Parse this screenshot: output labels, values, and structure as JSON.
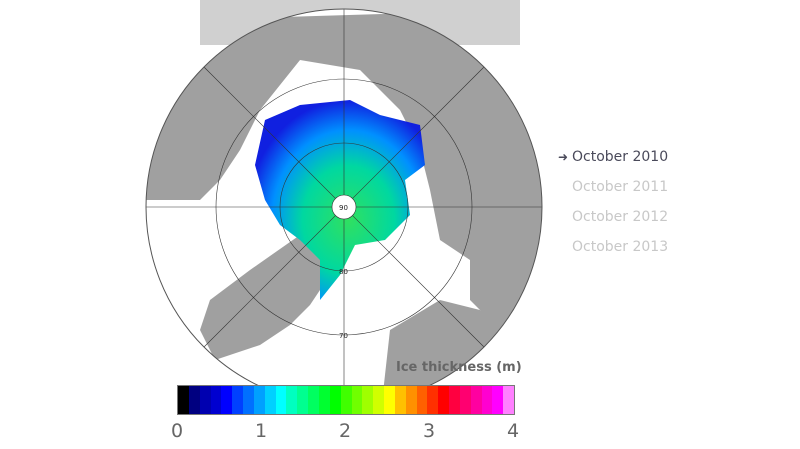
{
  "legend": {
    "selected_marker": "arrow-right-icon",
    "items": [
      {
        "label": "October 2010",
        "active": true
      },
      {
        "label": "October 2011",
        "active": false
      },
      {
        "label": "October 2012",
        "active": false
      },
      {
        "label": "October 2013",
        "active": false
      }
    ]
  },
  "map": {
    "latitude_labels": [
      "90",
      "80",
      "70"
    ],
    "ocean_color": "#ffffff",
    "land_color": "#a0a0a0"
  },
  "colorbar": {
    "title": "Ice thickness (m)",
    "ticks": [
      "0",
      "1",
      "2",
      "3",
      "4"
    ],
    "range": [
      0,
      4
    ],
    "colors": [
      "#000000",
      "#000080",
      "#0000b0",
      "#0000d0",
      "#0000ff",
      "#0040ff",
      "#0070ff",
      "#00a0ff",
      "#00d0ff",
      "#00ffff",
      "#00ffc0",
      "#00ff90",
      "#00ff60",
      "#00ff30",
      "#00ff00",
      "#40ff00",
      "#70ff00",
      "#a0ff00",
      "#d0ff00",
      "#ffff00",
      "#ffc000",
      "#ff9000",
      "#ff6000",
      "#ff3000",
      "#ff0000",
      "#ff0040",
      "#ff0070",
      "#ff00a0",
      "#ff00d0",
      "#ff00ff",
      "#ff80ff"
    ]
  }
}
